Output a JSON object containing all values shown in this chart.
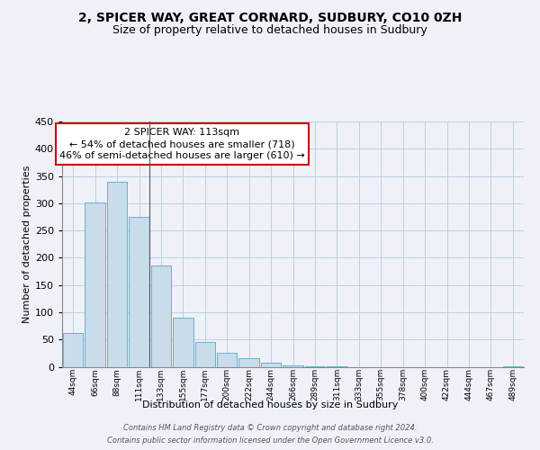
{
  "title_line1": "2, SPICER WAY, GREAT CORNARD, SUDBURY, CO10 0ZH",
  "title_line2": "Size of property relative to detached houses in Sudbury",
  "xlabel": "Distribution of detached houses by size in Sudbury",
  "ylabel": "Number of detached properties",
  "bar_color": "#c8dcea",
  "bar_edge_color": "#6aaed6",
  "categories": [
    "44sqm",
    "66sqm",
    "88sqm",
    "111sqm",
    "133sqm",
    "155sqm",
    "177sqm",
    "200sqm",
    "222sqm",
    "244sqm",
    "266sqm",
    "289sqm",
    "311sqm",
    "333sqm",
    "355sqm",
    "378sqm",
    "400sqm",
    "422sqm",
    "444sqm",
    "467sqm",
    "489sqm"
  ],
  "values": [
    62,
    302,
    340,
    275,
    185,
    90,
    46,
    25,
    16,
    7,
    2,
    1,
    1,
    0,
    0,
    0,
    0,
    0,
    0,
    0,
    1
  ],
  "highlight_bar_index": 3,
  "annotation_title": "2 SPICER WAY: 113sqm",
  "annotation_line1": "← 54% of detached houses are smaller (718)",
  "annotation_line2": "46% of semi-detached houses are larger (610) →",
  "annotation_box_facecolor": "#ffffff",
  "annotation_box_edgecolor": "#cc0000",
  "ylim": [
    0,
    450
  ],
  "yticks": [
    0,
    50,
    100,
    150,
    200,
    250,
    300,
    350,
    400,
    450
  ],
  "footer_line1": "Contains HM Land Registry data © Crown copyright and database right 2024.",
  "footer_line2": "Contains public sector information licensed under the Open Government Licence v3.0.",
  "background_color": "#eef2f8",
  "plot_bg_color": "#eef2f8",
  "grid_color": "#c0cfe0",
  "title_fontsize": 10,
  "subtitle_fontsize": 9,
  "ylabel_fontsize": 8,
  "xlabel_fontsize": 8,
  "ytick_fontsize": 8,
  "xtick_fontsize": 6.5,
  "annotation_fontsize": 8,
  "footer_fontsize": 6
}
